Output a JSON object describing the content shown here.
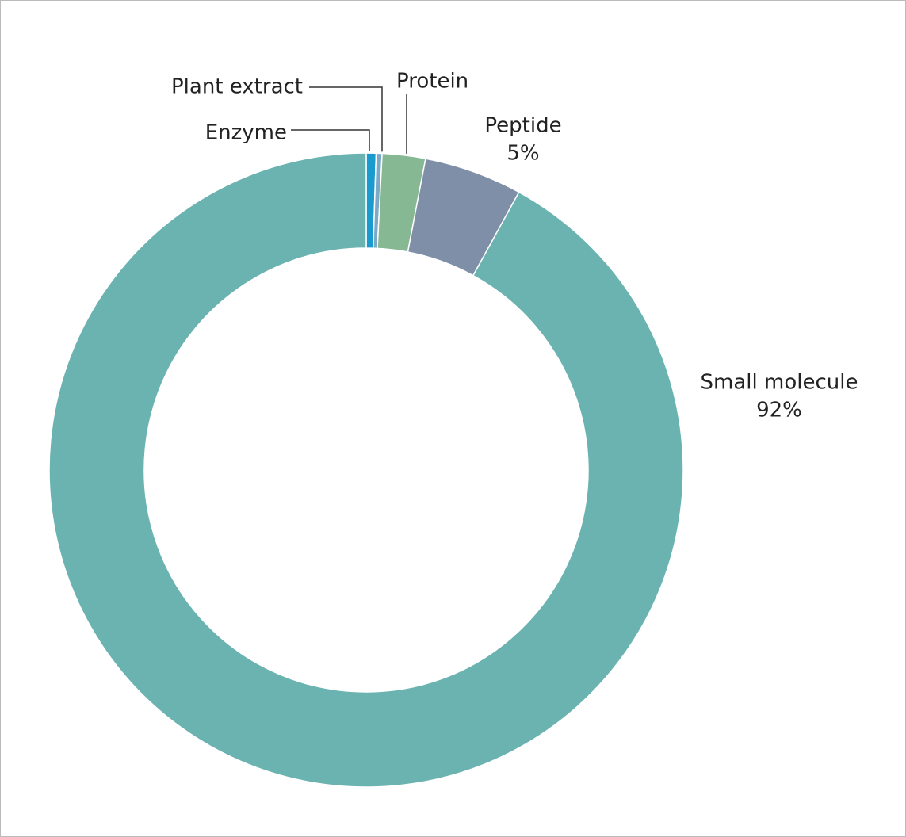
{
  "chart_data": {
    "type": "donut",
    "categories": [
      "Enzyme",
      "Plant extract",
      "Protein",
      "Peptide",
      "Small molecule"
    ],
    "values": [
      0.5,
      0.3,
      2.2,
      5,
      92
    ],
    "value_labels": [
      null,
      null,
      null,
      "5%",
      "92%"
    ],
    "colors": [
      "#1a9bd0",
      "#7aaac8",
      "#86b894",
      "#7f8fa8",
      "#6ab3b0"
    ]
  }
}
